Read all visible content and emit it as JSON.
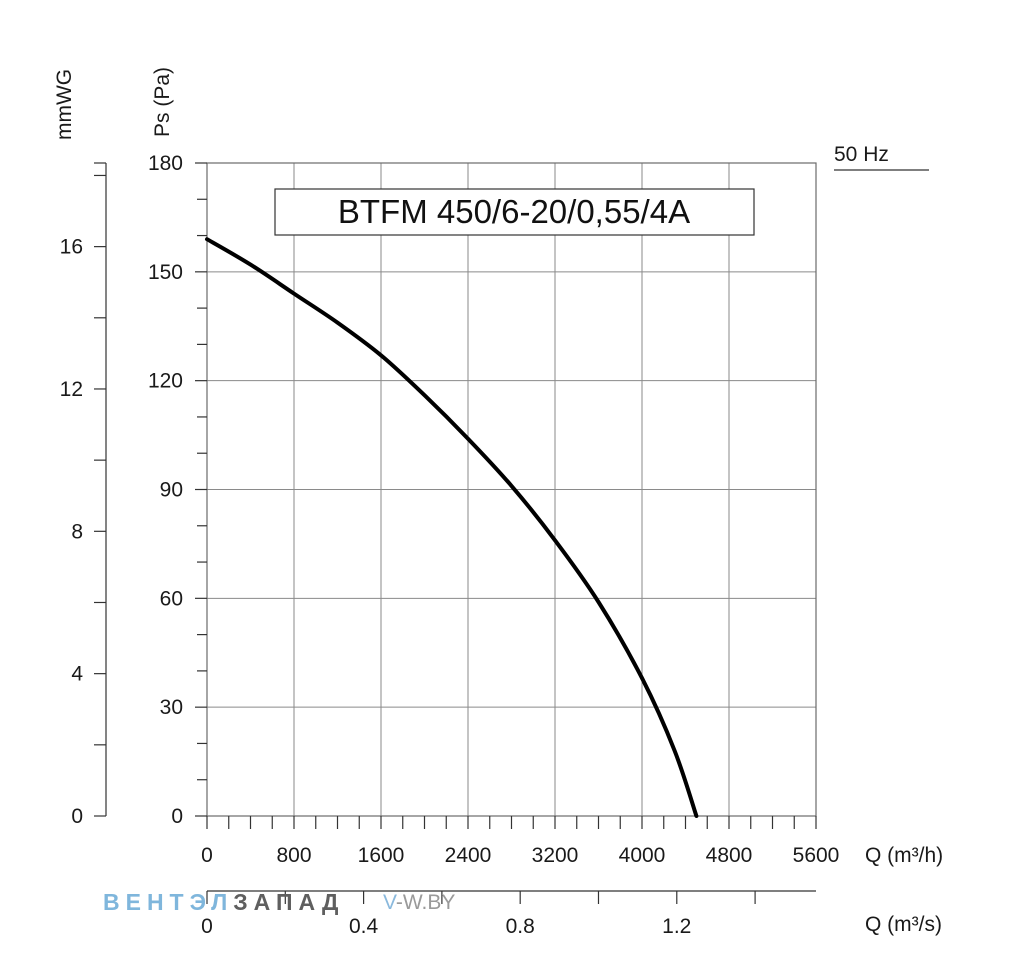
{
  "chart_data": {
    "type": "line",
    "title": "BTFM 450/6-20/0,55/4A",
    "frequency_label": "50 Hz",
    "x_axis": {
      "label": "Q (m³/h)",
      "range": [
        0,
        5600
      ],
      "ticks": [
        0,
        800,
        1600,
        2400,
        3200,
        4000,
        4800,
        5600
      ],
      "tick_labels": [
        "0",
        "800",
        "1600",
        "2400",
        "3200",
        "4000",
        "4800",
        "5600"
      ]
    },
    "x2_axis": {
      "label": "Q (m³/s)",
      "range": [
        0,
        1.5556
      ],
      "ticks": [
        0,
        0.4,
        0.8,
        1.2
      ],
      "tick_labels": [
        "0",
        "0.4",
        "0.8",
        "1.2"
      ]
    },
    "y_axis": {
      "label": "Ps (Pa)",
      "range": [
        0,
        180
      ],
      "ticks": [
        0,
        30,
        60,
        90,
        120,
        150,
        180
      ],
      "tick_labels": [
        "0",
        "30",
        "60",
        "90",
        "120",
        "150",
        "180"
      ]
    },
    "y2_axis": {
      "label": "mmWG",
      "range": [
        0,
        18.35
      ],
      "ticks": [
        0,
        4,
        8,
        12,
        16
      ],
      "tick_labels": [
        "0",
        "4",
        "8",
        "12",
        "16"
      ]
    },
    "grid": true,
    "series": [
      {
        "x": [
          0,
          400,
          800,
          1200,
          1600,
          2000,
          2400,
          2800,
          3200,
          3600,
          4000,
          4300,
          4500
        ],
        "y": [
          159,
          152,
          144,
          136,
          127,
          116,
          104,
          91,
          76,
          59,
          38,
          18,
          0
        ]
      }
    ]
  },
  "watermark": {
    "brand_part1": "ВЕНТЭЛ",
    "brand_part2": "ЗАПАД",
    "url_part1": "V",
    "url_part2": "-W.BY"
  }
}
